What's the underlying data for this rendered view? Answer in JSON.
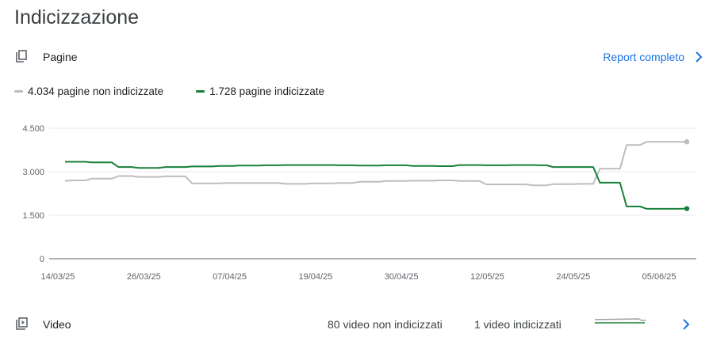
{
  "title": "Indicizzazione",
  "pages": {
    "label": "Pagine",
    "icon": "copy-pages-icon",
    "report_link": "Report completo"
  },
  "legend": {
    "not_indexed": "4.034 pagine non indicizzate",
    "indexed": "1.728 pagine indicizzate"
  },
  "colors": {
    "not_indexed": "#bdbdbd",
    "indexed": "#188038",
    "link": "#1a73e8"
  },
  "video": {
    "label": "Video",
    "icon": "video-library-icon",
    "not_indexed": "80 video non indicizzati",
    "indexed": "1 video indicizzati"
  },
  "chart_data": {
    "type": "line",
    "x_tick_labels": [
      "14/03/25",
      "26/03/25",
      "07/04/25",
      "19/04/25",
      "30/04/25",
      "12/05/25",
      "24/05/25",
      "05/06/25"
    ],
    "y_ticks": [
      0,
      1500,
      3000,
      4500
    ],
    "y_tick_labels": [
      "0",
      "1.500",
      "3.000",
      "4.500"
    ],
    "ylim": [
      0,
      4500
    ],
    "grid": true,
    "legend_position": "top-left",
    "series": [
      {
        "name": "4.034 pagine non indicizzate",
        "key": "not_indexed",
        "values": [
          2680,
          2700,
          2700,
          2700,
          2760,
          2760,
          2760,
          2760,
          2850,
          2850,
          2850,
          2820,
          2820,
          2820,
          2820,
          2840,
          2840,
          2840,
          2840,
          2600,
          2600,
          2600,
          2600,
          2600,
          2610,
          2610,
          2610,
          2610,
          2610,
          2610,
          2610,
          2610,
          2610,
          2580,
          2580,
          2580,
          2580,
          2600,
          2600,
          2600,
          2600,
          2610,
          2610,
          2610,
          2650,
          2650,
          2650,
          2650,
          2680,
          2680,
          2680,
          2680,
          2690,
          2690,
          2690,
          2690,
          2700,
          2700,
          2700,
          2680,
          2680,
          2680,
          2680,
          2560,
          2560,
          2560,
          2560,
          2560,
          2560,
          2560,
          2530,
          2530,
          2530,
          2570,
          2570,
          2570,
          2570,
          2580,
          2580,
          2580,
          3100,
          3100,
          3100,
          3100,
          3920,
          3920,
          3920,
          4030,
          4030,
          4030,
          4030,
          4030,
          4030,
          4030
        ]
      },
      {
        "name": "1.728 pagine indicizzate",
        "key": "indexed",
        "values": [
          3340,
          3340,
          3340,
          3340,
          3320,
          3320,
          3320,
          3320,
          3160,
          3160,
          3160,
          3130,
          3130,
          3130,
          3130,
          3160,
          3160,
          3160,
          3160,
          3180,
          3180,
          3180,
          3180,
          3200,
          3200,
          3200,
          3210,
          3210,
          3210,
          3210,
          3220,
          3220,
          3220,
          3230,
          3230,
          3230,
          3230,
          3230,
          3230,
          3230,
          3230,
          3220,
          3220,
          3220,
          3210,
          3210,
          3210,
          3210,
          3220,
          3220,
          3220,
          3220,
          3200,
          3200,
          3200,
          3200,
          3190,
          3190,
          3190,
          3230,
          3230,
          3230,
          3230,
          3220,
          3220,
          3220,
          3220,
          3230,
          3230,
          3230,
          3230,
          3220,
          3220,
          3160,
          3160,
          3160,
          3160,
          3160,
          3160,
          3160,
          2620,
          2620,
          2620,
          2620,
          1800,
          1800,
          1800,
          1720,
          1720,
          1720,
          1720,
          1720,
          1720,
          1728
        ]
      }
    ]
  }
}
